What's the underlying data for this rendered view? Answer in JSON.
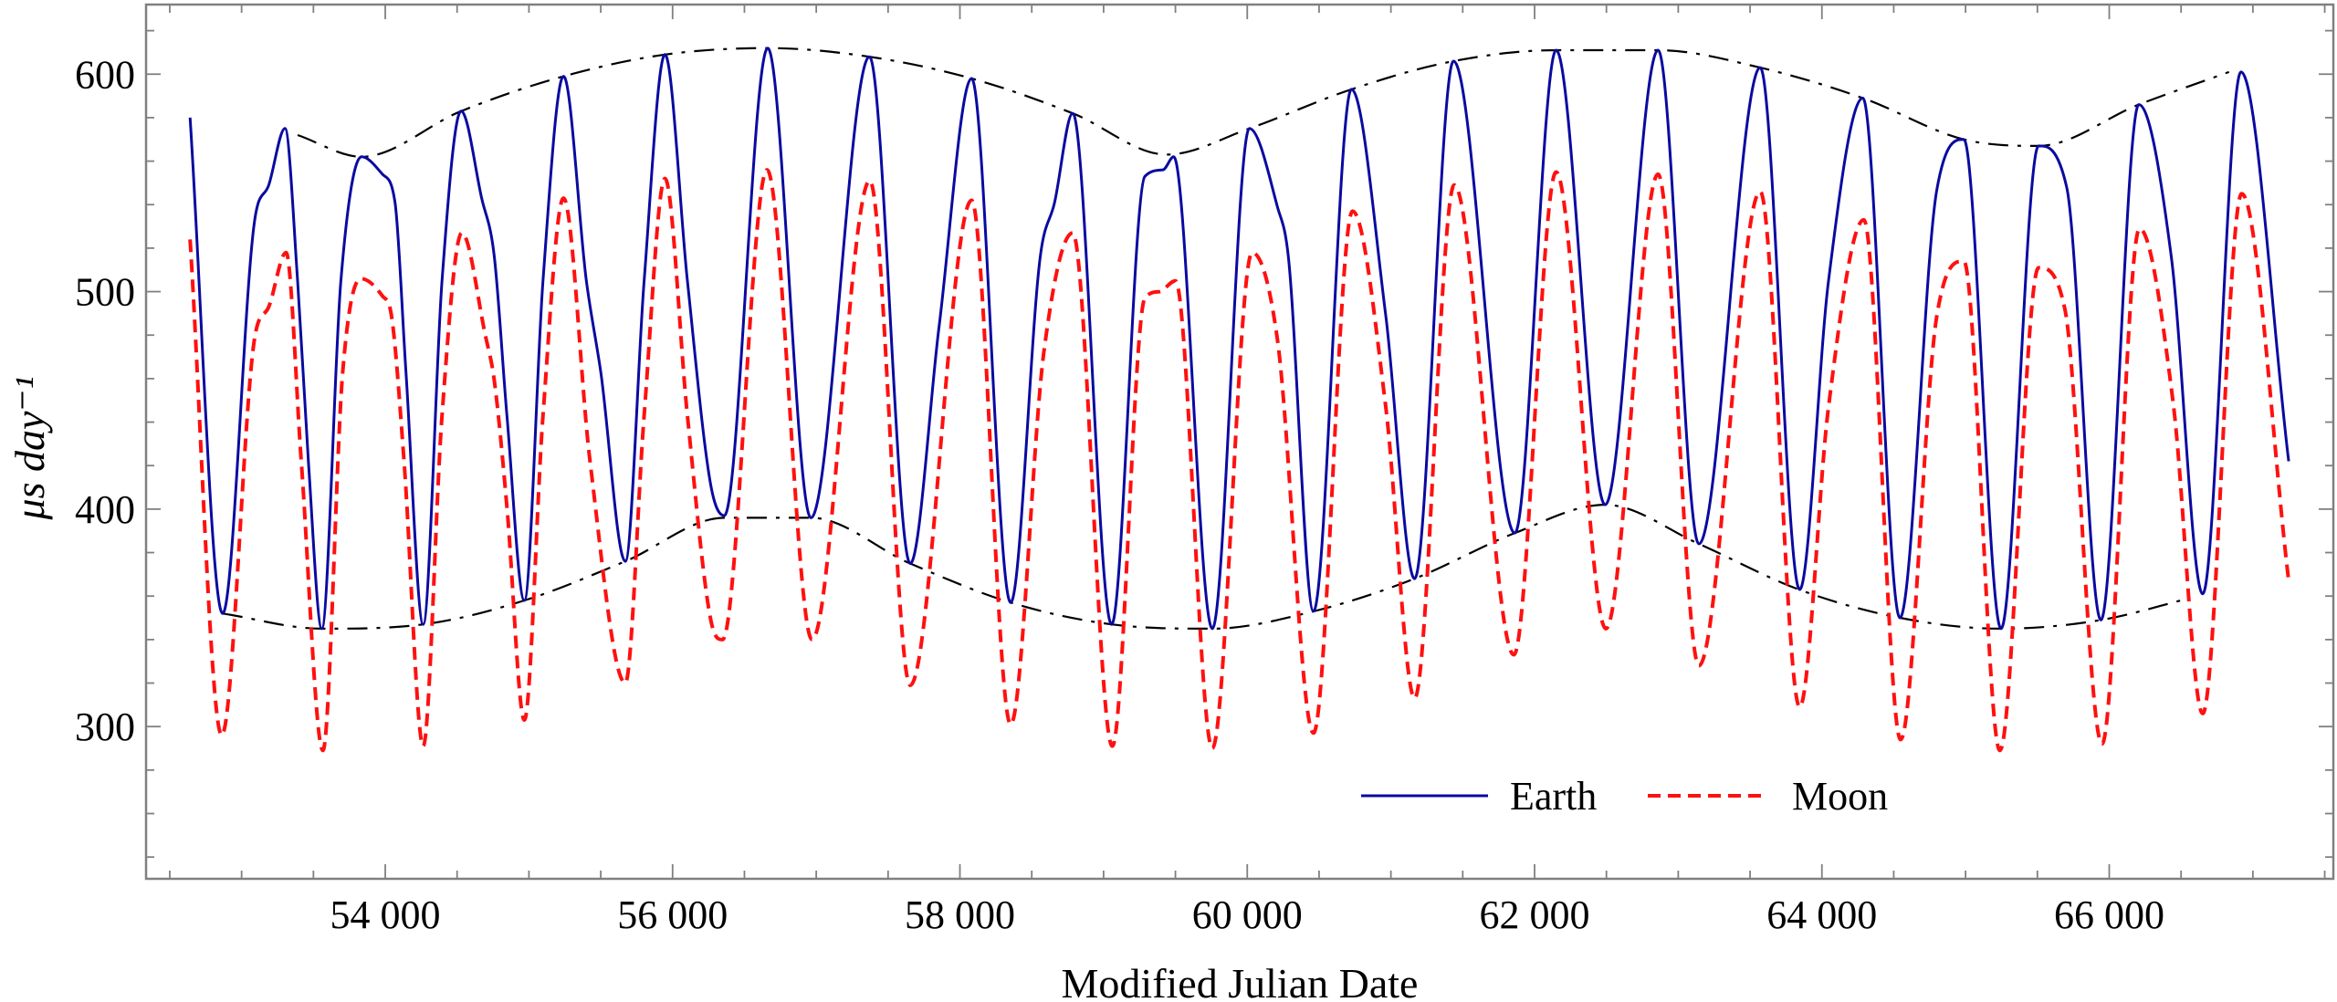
{
  "chart_data": {
    "type": "line",
    "title": "",
    "xlabel": "Modified Julian Date",
    "ylabel": "μs day⁻¹",
    "xlim": [
      52335,
      67560
    ],
    "ylim": [
      230,
      632
    ],
    "grid": false,
    "legend_placement": "bottom-right",
    "x_major_ticks": [
      54000,
      56000,
      58000,
      60000,
      62000,
      64000,
      66000
    ],
    "x_tick_labels": [
      "54 000",
      "56 000",
      "58 000",
      "60 000",
      "62 000",
      "64 000",
      "66 000"
    ],
    "x_minor_step": 500,
    "y_major_ticks": [
      300,
      400,
      500,
      600
    ],
    "y_tick_labels": [
      "300",
      "400",
      "500",
      "600"
    ],
    "y_minor_step": 20,
    "colors": {
      "earth": "#0a0aa0",
      "moon": "#ff1010",
      "envelope": "#000000",
      "axes": "#808080"
    },
    "series": [
      {
        "name": "Earth",
        "style": "solid",
        "points": [
          [
            52641,
            580
          ],
          [
            52868,
            352
          ],
          [
            53089,
            532
          ],
          [
            53189,
            549
          ],
          [
            53302,
            575
          ],
          [
            53390,
            505
          ],
          [
            53465,
            422
          ],
          [
            53558,
            345
          ],
          [
            53691,
            505
          ],
          [
            53835,
            562
          ],
          [
            53980,
            554
          ],
          [
            54068,
            541
          ],
          [
            54144,
            463
          ],
          [
            54264,
            347
          ],
          [
            54395,
            505
          ],
          [
            54528,
            583
          ],
          [
            54671,
            543
          ],
          [
            54759,
            516
          ],
          [
            54847,
            443
          ],
          [
            54968,
            358
          ],
          [
            55098,
            505
          ],
          [
            55241,
            599
          ],
          [
            55400,
            505
          ],
          [
            55500,
            463
          ],
          [
            55671,
            376
          ],
          [
            55802,
            505
          ],
          [
            55947,
            609
          ],
          [
            56103,
            505
          ],
          [
            56266,
            411
          ],
          [
            56360,
            397
          ],
          [
            56662,
            612
          ],
          [
            56963,
            396
          ],
          [
            57370,
            608
          ],
          [
            57654,
            375
          ],
          [
            57855,
            484
          ],
          [
            58081,
            598
          ],
          [
            58353,
            357
          ],
          [
            58559,
            516
          ],
          [
            58659,
            541
          ],
          [
            58785,
            582
          ],
          [
            59056,
            347
          ],
          [
            59287,
            553
          ],
          [
            59413,
            556
          ],
          [
            59488,
            562
          ],
          [
            59757,
            345
          ],
          [
            60015,
            575
          ],
          [
            60210,
            539
          ],
          [
            60286,
            516
          ],
          [
            60461,
            353
          ],
          [
            60725,
            593
          ],
          [
            60964,
            489
          ],
          [
            61165,
            368
          ],
          [
            61436,
            606
          ],
          [
            61863,
            389
          ],
          [
            62150,
            611
          ],
          [
            62491,
            402
          ],
          [
            62860,
            611
          ],
          [
            63144,
            384
          ],
          [
            63571,
            603
          ],
          [
            63845,
            363
          ],
          [
            64046,
            505
          ],
          [
            64285,
            589
          ],
          [
            64543,
            350
          ],
          [
            64800,
            547
          ],
          [
            64988,
            570
          ],
          [
            65247,
            345
          ],
          [
            65508,
            567
          ],
          [
            65704,
            548
          ],
          [
            65942,
            349
          ],
          [
            66206,
            586
          ],
          [
            66432,
            516
          ],
          [
            66651,
            361
          ],
          [
            66917,
            601
          ],
          [
            67249,
            422
          ]
        ]
      },
      {
        "name": "Moon",
        "style": "dashed",
        "points": [
          [
            52641,
            524
          ],
          [
            52862,
            296
          ],
          [
            53089,
            478
          ],
          [
            53189,
            493
          ],
          [
            53310,
            518
          ],
          [
            53415,
            422
          ],
          [
            53566,
            289
          ],
          [
            53704,
            463
          ],
          [
            53830,
            506
          ],
          [
            53980,
            498
          ],
          [
            54043,
            489
          ],
          [
            54131,
            422
          ],
          [
            54264,
            291
          ],
          [
            54395,
            443
          ],
          [
            54533,
            527
          ],
          [
            54696,
            480
          ],
          [
            54759,
            459
          ],
          [
            54847,
            401
          ],
          [
            54968,
            303
          ],
          [
            55098,
            443
          ],
          [
            55241,
            543
          ],
          [
            55425,
            422
          ],
          [
            55671,
            320
          ],
          [
            55802,
            443
          ],
          [
            55947,
            552
          ],
          [
            56103,
            443
          ],
          [
            56266,
            349
          ],
          [
            56348,
            340
          ],
          [
            56657,
            556
          ],
          [
            56971,
            340
          ],
          [
            57373,
            551
          ],
          [
            57654,
            319
          ],
          [
            58081,
            542
          ],
          [
            58353,
            301
          ],
          [
            58584,
            472
          ],
          [
            58785,
            527
          ],
          [
            59061,
            291
          ],
          [
            59287,
            497
          ],
          [
            59388,
            500
          ],
          [
            59500,
            505
          ],
          [
            59757,
            290
          ],
          [
            60034,
            518
          ],
          [
            60210,
            478
          ],
          [
            60461,
            297
          ],
          [
            60733,
            537
          ],
          [
            60964,
            447
          ],
          [
            61165,
            313
          ],
          [
            61441,
            549
          ],
          [
            61856,
            333
          ],
          [
            62150,
            555
          ],
          [
            62496,
            345
          ],
          [
            62860,
            554
          ],
          [
            63144,
            328
          ],
          [
            63571,
            546
          ],
          [
            63845,
            309
          ],
          [
            64046,
            447
          ],
          [
            64292,
            533
          ],
          [
            64548,
            294
          ],
          [
            64800,
            489
          ],
          [
            64988,
            514
          ],
          [
            65239,
            289
          ],
          [
            65508,
            511
          ],
          [
            65691,
            492
          ],
          [
            65950,
            292
          ],
          [
            66211,
            529
          ],
          [
            66445,
            449
          ],
          [
            66651,
            306
          ],
          [
            66922,
            545
          ],
          [
            67249,
            367
          ]
        ]
      }
    ],
    "envelopes": [
      {
        "style": "dash-dot",
        "points": [
          [
            53390,
            572
          ],
          [
            53835,
            562
          ],
          [
            54528,
            583
          ],
          [
            55241,
            599
          ],
          [
            55947,
            609
          ],
          [
            56662,
            612
          ],
          [
            57370,
            608
          ],
          [
            58081,
            598
          ],
          [
            58785,
            582
          ],
          [
            59440,
            563
          ],
          [
            60015,
            575
          ],
          [
            60725,
            593
          ],
          [
            61436,
            606
          ],
          [
            62150,
            611
          ],
          [
            62860,
            611
          ],
          [
            63571,
            603
          ],
          [
            64285,
            589
          ],
          [
            64988,
            570
          ],
          [
            65508,
            567
          ],
          [
            66206,
            586
          ],
          [
            66834,
            601
          ]
        ]
      },
      {
        "style": "dash-dot",
        "points": [
          [
            52868,
            352
          ],
          [
            53558,
            345
          ],
          [
            54264,
            347
          ],
          [
            54968,
            358
          ],
          [
            55671,
            376
          ],
          [
            56360,
            396
          ],
          [
            56963,
            396
          ],
          [
            57654,
            375
          ],
          [
            58353,
            357
          ],
          [
            59056,
            347
          ],
          [
            59757,
            345
          ],
          [
            60461,
            353
          ],
          [
            61165,
            368
          ],
          [
            61863,
            389
          ],
          [
            62491,
            402
          ],
          [
            63144,
            384
          ],
          [
            63840,
            363
          ],
          [
            64543,
            350
          ],
          [
            65247,
            345
          ],
          [
            65942,
            349
          ],
          [
            66558,
            359
          ]
        ]
      }
    ],
    "legend": [
      {
        "label": "Earth",
        "style": "solid"
      },
      {
        "label": "Moon",
        "style": "dashed"
      }
    ]
  }
}
